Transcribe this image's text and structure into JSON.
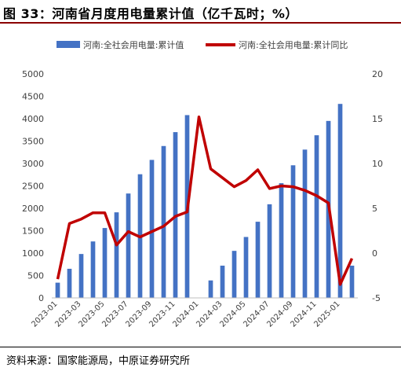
{
  "header": {
    "title": "图 33：河南省月度用电量累计值（亿千瓦时；%）"
  },
  "footer": {
    "source": "资料来源：国家能源局，中原证券研究所"
  },
  "chart_data": {
    "type": "bar",
    "x": [
      "2023-01",
      "2023-02",
      "2023-03",
      "2023-04",
      "2023-05",
      "2023-06",
      "2023-07",
      "2023-08",
      "2023-09",
      "2023-10",
      "2023-11",
      "2023-12",
      "2024-01",
      "2024-02",
      "2024-03",
      "2024-04",
      "2024-05",
      "2024-06",
      "2024-07",
      "2024-08",
      "2024-09",
      "2024-10",
      "2024-11",
      "2024-12",
      "2025-01",
      "2025-02"
    ],
    "x_tick_labels": [
      "2023-01",
      "2023-03",
      "2023-05",
      "2023-07",
      "2023-09",
      "2023-11",
      "2024-01",
      "2024-03",
      "2024-05",
      "2024-07",
      "2024-09",
      "2024-11",
      "2025-01"
    ],
    "series": [
      {
        "name": "河南:全社会用电量:累计值",
        "type": "bar",
        "axis": "left",
        "color": "#4472c4",
        "values": [
          340,
          650,
          980,
          1260,
          1560,
          1910,
          2330,
          2760,
          3080,
          3390,
          3700,
          4080,
          null,
          390,
          720,
          1050,
          1360,
          1700,
          2090,
          2560,
          2960,
          3310,
          3630,
          3950,
          4330,
          720
        ]
      },
      {
        "name": "河南:全社会用电量:累计同比",
        "type": "line",
        "axis": "right",
        "color": "#c00000",
        "values": [
          -2.9,
          3.3,
          3.8,
          4.5,
          4.5,
          0.9,
          2.4,
          1.8,
          2.4,
          3.0,
          4.1,
          4.6,
          15.2,
          9.4,
          8.4,
          7.4,
          8.1,
          9.3,
          7.2,
          7.5,
          7.4,
          7.0,
          6.4,
          5.6,
          -3.5,
          -0.6
        ]
      }
    ],
    "y_left": {
      "min": 0,
      "max": 5000,
      "ticks": [
        "0",
        "500",
        "1000",
        "1500",
        "2000",
        "2500",
        "3000",
        "3500",
        "4000",
        "4500",
        "5000"
      ]
    },
    "y_right": {
      "min": -5,
      "max": 20,
      "ticks": [
        "-5",
        "0",
        "5",
        "10",
        "15",
        "20"
      ]
    },
    "legend_position": "top",
    "grid": false
  }
}
